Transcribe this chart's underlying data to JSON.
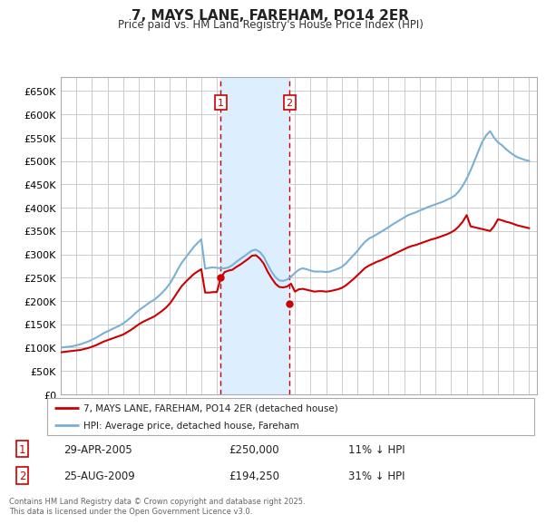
{
  "title": "7, MAYS LANE, FAREHAM, PO14 2ER",
  "subtitle": "Price paid vs. HM Land Registry's House Price Index (HPI)",
  "ylim": [
    0,
    680000
  ],
  "yticks": [
    0,
    50000,
    100000,
    150000,
    200000,
    250000,
    300000,
    350000,
    400000,
    450000,
    500000,
    550000,
    600000,
    650000
  ],
  "xlim_start": 1995.0,
  "xlim_end": 2025.5,
  "background_color": "#ffffff",
  "grid_color": "#cccccc",
  "sale1": {
    "date_num": 2005.25,
    "price": 250000,
    "label": "1",
    "date_str": "29-APR-2005",
    "hpi_pct": "11%"
  },
  "sale2": {
    "date_num": 2009.65,
    "price": 194250,
    "label": "2",
    "date_str": "25-AUG-2009",
    "hpi_pct": "31%"
  },
  "vspan_color": "#ddeeff",
  "vline_color": "#cc0000",
  "legend_label_red": "7, MAYS LANE, FAREHAM, PO14 2ER (detached house)",
  "legend_label_blue": "HPI: Average price, detached house, Fareham",
  "footer": "Contains HM Land Registry data © Crown copyright and database right 2025.\nThis data is licensed under the Open Government Licence v3.0.",
  "red_color": "#cc0000",
  "blue_color": "#7ab0d4",
  "hpi_data_x": [
    1995.0,
    1995.25,
    1995.5,
    1995.75,
    1996.0,
    1996.25,
    1996.5,
    1996.75,
    1997.0,
    1997.25,
    1997.5,
    1997.75,
    1998.0,
    1998.25,
    1998.5,
    1998.75,
    1999.0,
    1999.25,
    1999.5,
    1999.75,
    2000.0,
    2000.25,
    2000.5,
    2000.75,
    2001.0,
    2001.25,
    2001.5,
    2001.75,
    2002.0,
    2002.25,
    2002.5,
    2002.75,
    2003.0,
    2003.25,
    2003.5,
    2003.75,
    2004.0,
    2004.25,
    2004.5,
    2004.75,
    2005.0,
    2005.25,
    2005.5,
    2005.75,
    2006.0,
    2006.25,
    2006.5,
    2006.75,
    2007.0,
    2007.25,
    2007.5,
    2007.75,
    2008.0,
    2008.25,
    2008.5,
    2008.75,
    2009.0,
    2009.25,
    2009.5,
    2009.75,
    2010.0,
    2010.25,
    2010.5,
    2010.75,
    2011.0,
    2011.25,
    2011.5,
    2011.75,
    2012.0,
    2012.25,
    2012.5,
    2012.75,
    2013.0,
    2013.25,
    2013.5,
    2013.75,
    2014.0,
    2014.25,
    2014.5,
    2014.75,
    2015.0,
    2015.25,
    2015.5,
    2015.75,
    2016.0,
    2016.25,
    2016.5,
    2016.75,
    2017.0,
    2017.25,
    2017.5,
    2017.75,
    2018.0,
    2018.25,
    2018.5,
    2018.75,
    2019.0,
    2019.25,
    2019.5,
    2019.75,
    2020.0,
    2020.25,
    2020.5,
    2020.75,
    2021.0,
    2021.25,
    2021.5,
    2021.75,
    2022.0,
    2022.25,
    2022.5,
    2022.75,
    2023.0,
    2023.25,
    2023.5,
    2023.75,
    2024.0,
    2024.25,
    2024.5,
    2024.75,
    2025.0
  ],
  "hpi_data_y": [
    100000,
    101000,
    102000,
    103000,
    105000,
    107000,
    110000,
    113000,
    117000,
    121000,
    126000,
    131000,
    135000,
    139000,
    143000,
    147000,
    152000,
    158000,
    165000,
    173000,
    180000,
    186000,
    192000,
    198000,
    203000,
    210000,
    218000,
    227000,
    238000,
    252000,
    268000,
    282000,
    293000,
    304000,
    315000,
    324000,
    332000,
    269000,
    271000,
    272000,
    271000,
    270000,
    270000,
    272000,
    277000,
    284000,
    290000,
    296000,
    302000,
    308000,
    310000,
    305000,
    295000,
    278000,
    263000,
    251000,
    244000,
    243000,
    246000,
    252000,
    260000,
    267000,
    270000,
    268000,
    265000,
    263000,
    263000,
    263000,
    262000,
    263000,
    266000,
    269000,
    273000,
    280000,
    289000,
    298000,
    307000,
    318000,
    327000,
    334000,
    338000,
    343000,
    348000,
    353000,
    358000,
    364000,
    369000,
    374000,
    379000,
    384000,
    387000,
    390000,
    394000,
    397000,
    401000,
    404000,
    407000,
    410000,
    413000,
    417000,
    421000,
    426000,
    435000,
    447000,
    462000,
    480000,
    500000,
    521000,
    541000,
    555000,
    564000,
    550000,
    540000,
    534000,
    526000,
    519000,
    513000,
    508000,
    505000,
    502000,
    500000
  ],
  "red_data_x": [
    1995.0,
    1995.25,
    1995.5,
    1995.75,
    1996.0,
    1996.25,
    1996.5,
    1996.75,
    1997.0,
    1997.25,
    1997.5,
    1997.75,
    1998.0,
    1998.25,
    1998.5,
    1998.75,
    1999.0,
    1999.25,
    1999.5,
    1999.75,
    2000.0,
    2000.25,
    2000.5,
    2000.75,
    2001.0,
    2001.25,
    2001.5,
    2001.75,
    2002.0,
    2002.25,
    2002.5,
    2002.75,
    2003.0,
    2003.25,
    2003.5,
    2003.75,
    2004.0,
    2004.25,
    2004.5,
    2004.75,
    2005.0,
    2005.25,
    2005.5,
    2005.75,
    2006.0,
    2006.25,
    2006.5,
    2006.75,
    2007.0,
    2007.25,
    2007.5,
    2007.75,
    2008.0,
    2008.25,
    2008.5,
    2008.75,
    2009.0,
    2009.25,
    2009.5,
    2009.75,
    2010.0,
    2010.25,
    2010.5,
    2010.75,
    2011.0,
    2011.25,
    2011.5,
    2011.75,
    2012.0,
    2012.25,
    2012.5,
    2012.75,
    2013.0,
    2013.25,
    2013.5,
    2013.75,
    2014.0,
    2014.25,
    2014.5,
    2014.75,
    2015.0,
    2015.25,
    2015.5,
    2015.75,
    2016.0,
    2016.25,
    2016.5,
    2016.75,
    2017.0,
    2017.25,
    2017.5,
    2017.75,
    2018.0,
    2018.25,
    2018.5,
    2018.75,
    2019.0,
    2019.25,
    2019.5,
    2019.75,
    2020.0,
    2020.25,
    2020.5,
    2020.75,
    2021.0,
    2021.25,
    2021.5,
    2021.75,
    2022.0,
    2022.25,
    2022.5,
    2022.75,
    2023.0,
    2023.25,
    2023.5,
    2023.75,
    2024.0,
    2024.25,
    2024.5,
    2024.75,
    2025.0
  ],
  "red_data_y": [
    90000,
    91000,
    92000,
    93000,
    94000,
    95000,
    97000,
    99000,
    102000,
    105000,
    109000,
    113000,
    116000,
    119000,
    122000,
    125000,
    128000,
    133000,
    138000,
    144000,
    150000,
    155000,
    159000,
    163000,
    167000,
    173000,
    179000,
    186000,
    195000,
    207000,
    220000,
    232000,
    241000,
    249000,
    257000,
    263000,
    268000,
    218000,
    218000,
    219000,
    219000,
    250000,
    262000,
    265000,
    267000,
    273000,
    278000,
    284000,
    290000,
    297000,
    298000,
    291000,
    280000,
    263000,
    249000,
    237000,
    230000,
    229000,
    231000,
    237000,
    220000,
    225000,
    226000,
    224000,
    222000,
    220000,
    221000,
    221000,
    220000,
    221000,
    223000,
    225000,
    228000,
    233000,
    240000,
    247000,
    255000,
    263000,
    271000,
    276000,
    280000,
    284000,
    287000,
    291000,
    295000,
    299000,
    303000,
    307000,
    311000,
    315000,
    318000,
    320000,
    323000,
    326000,
    329000,
    332000,
    334000,
    337000,
    340000,
    343000,
    347000,
    352000,
    360000,
    370000,
    384000,
    360000,
    358000,
    356000,
    354000,
    352000,
    350000,
    360000,
    375000,
    373000,
    370000,
    368000,
    365000,
    362000,
    360000,
    358000,
    356000
  ]
}
